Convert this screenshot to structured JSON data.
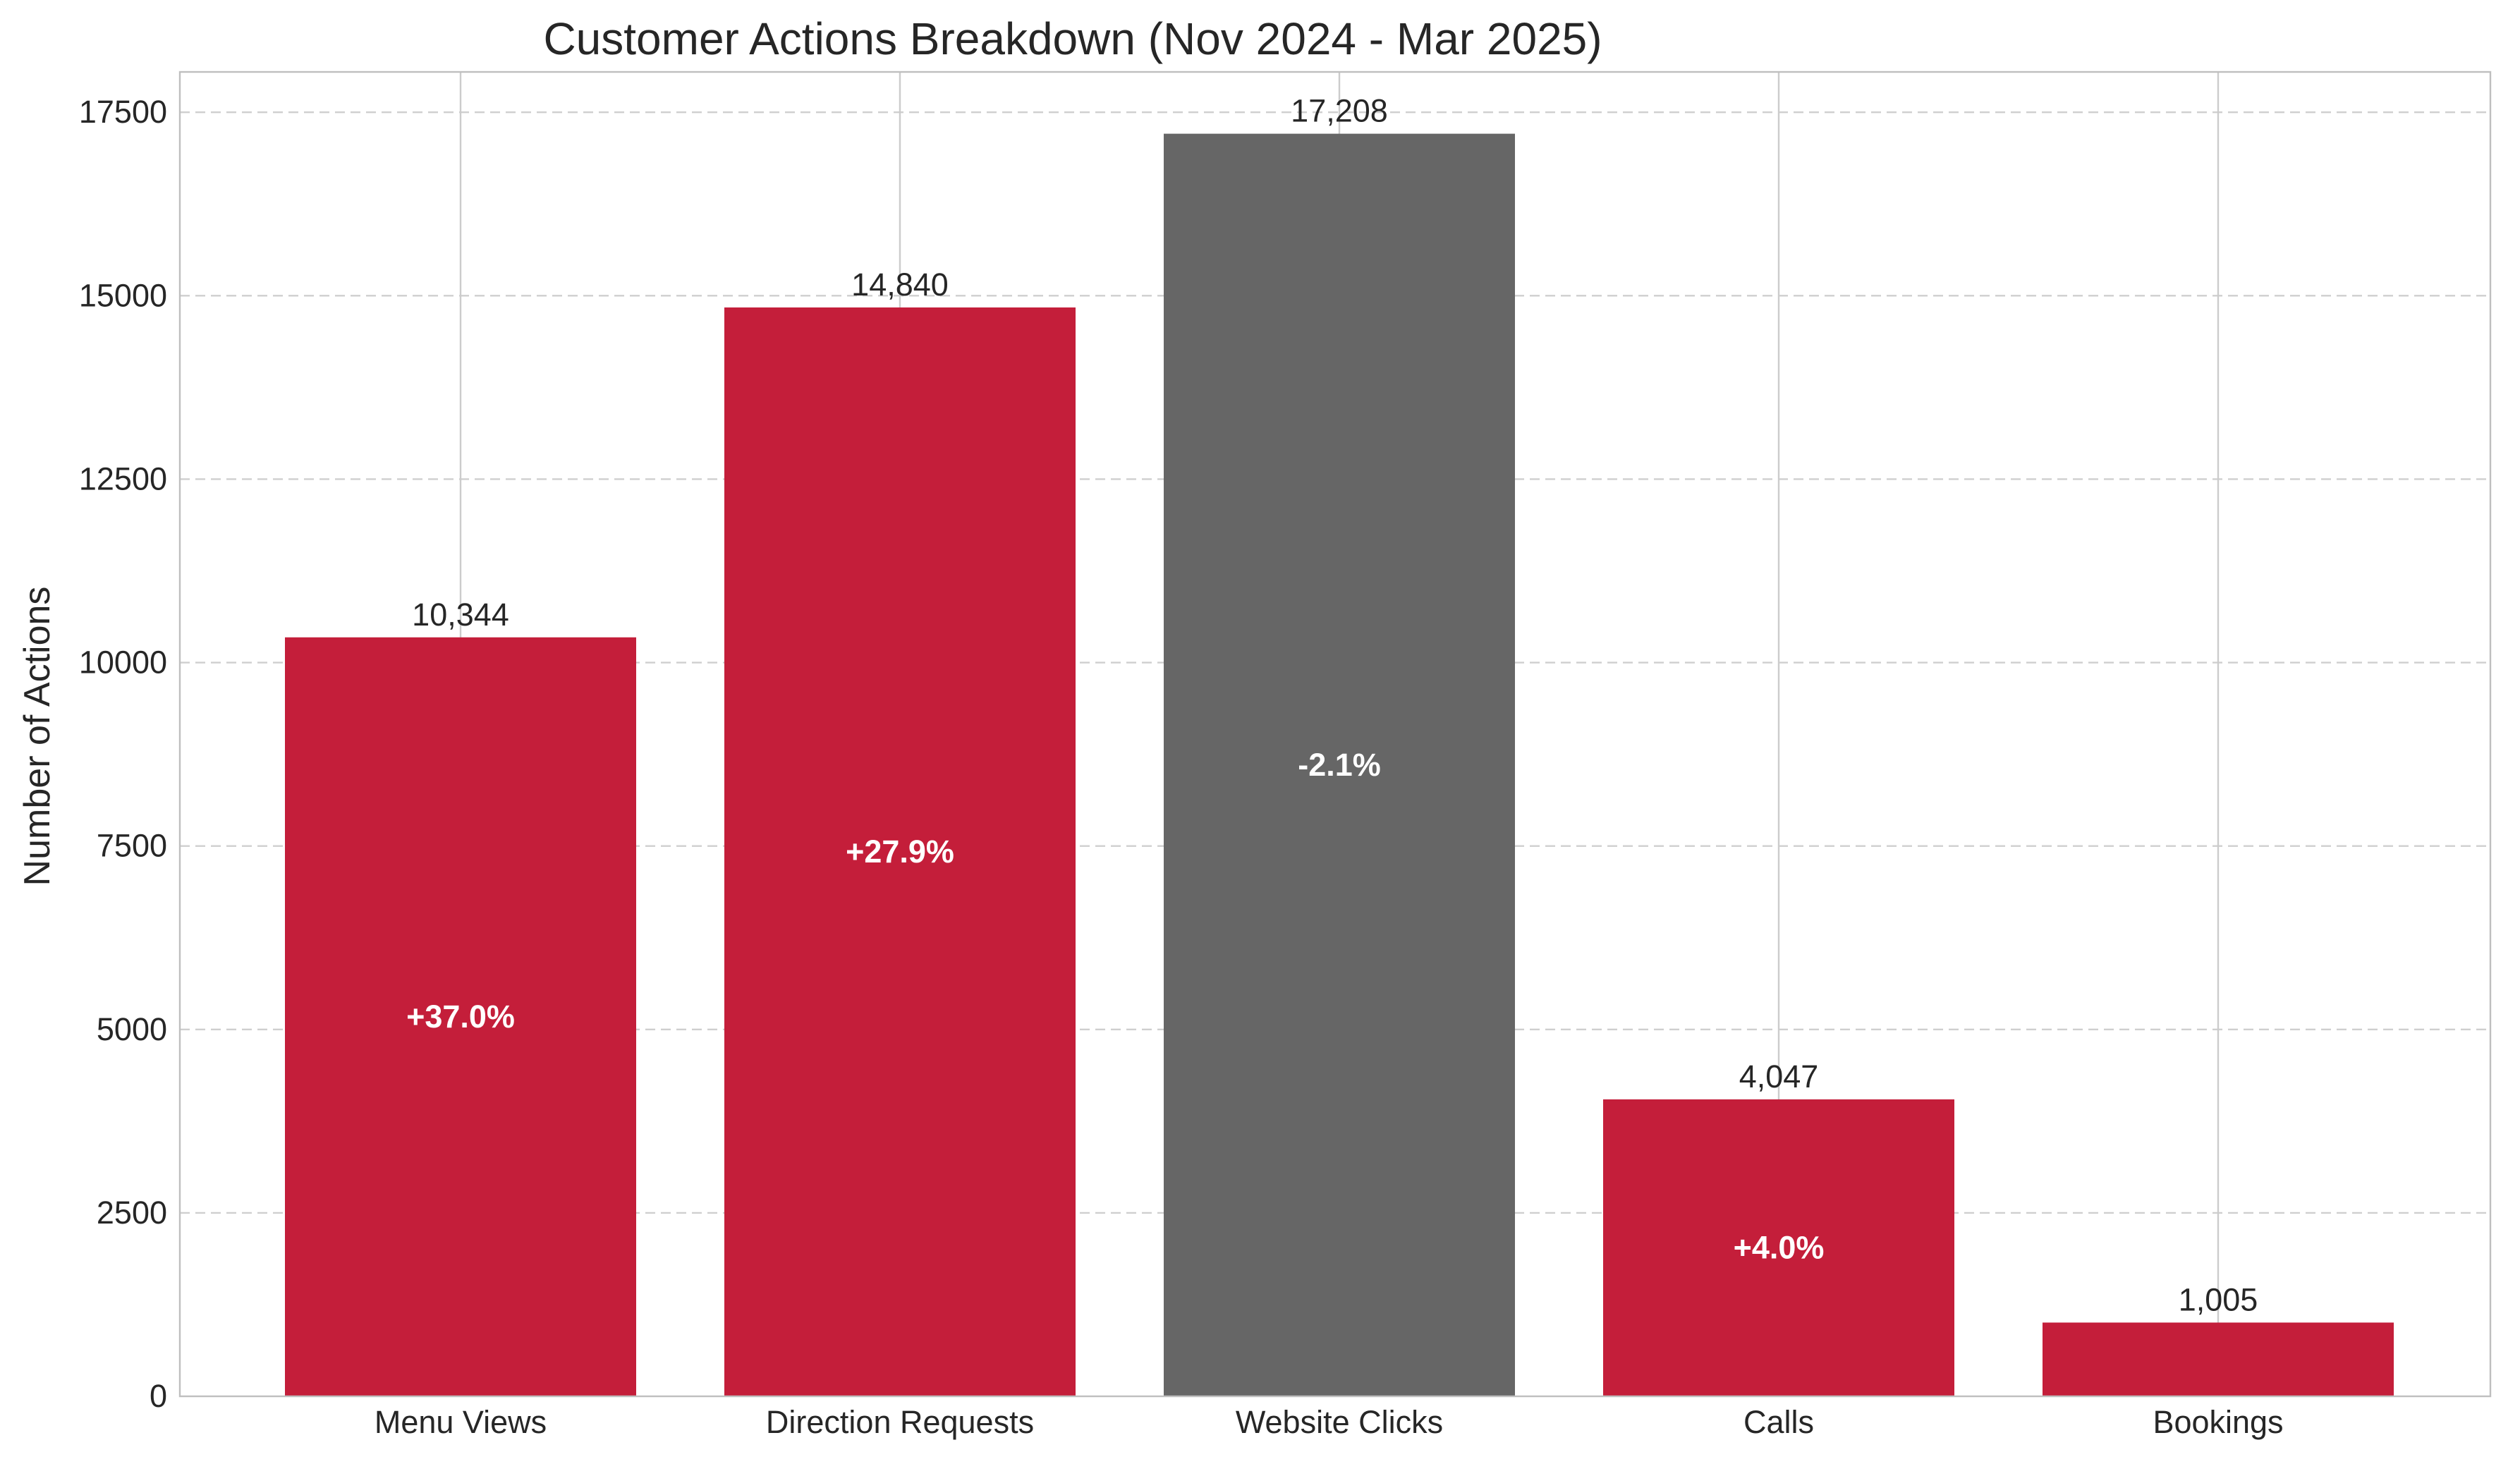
{
  "chart_data": {
    "type": "bar",
    "title": "Customer Actions Breakdown (Nov 2024 - Mar 2025)",
    "xlabel": "",
    "ylabel": "Number of Actions",
    "ylim": [
      0,
      18050
    ],
    "yticks": [
      0,
      2500,
      5000,
      7500,
      10000,
      12500,
      15000,
      17500
    ],
    "grid": true,
    "categories": [
      "Menu Views",
      "Direction Requests",
      "Website Clicks",
      "Calls",
      "Bookings"
    ],
    "values": [
      10344,
      14840,
      17208,
      4047,
      1005
    ],
    "value_labels": [
      "10,344",
      "14,840",
      "17,208",
      "4,047",
      "1,005"
    ],
    "change_labels": [
      "+37.0%",
      "+27.9%",
      "-2.1%",
      "+4.0%",
      ""
    ],
    "colors": [
      "#c41e3a",
      "#c41e3a",
      "#666666",
      "#c41e3a",
      "#c41e3a"
    ]
  }
}
